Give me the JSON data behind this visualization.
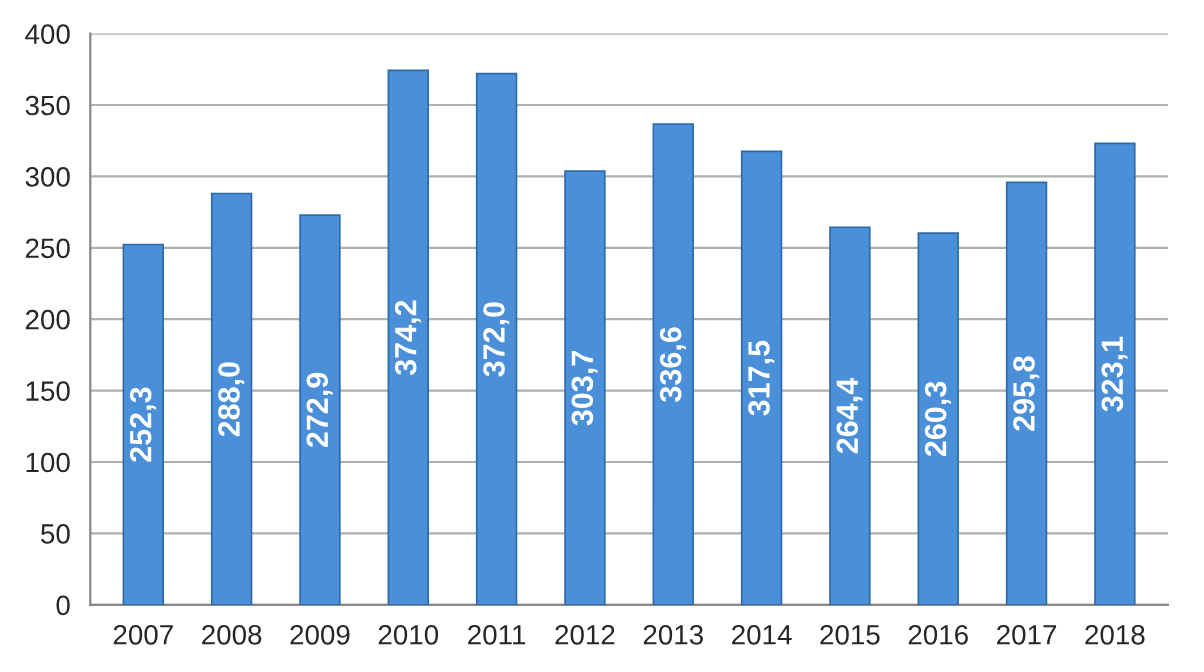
{
  "chart_data": {
    "type": "bar",
    "categories": [
      "2007",
      "2008",
      "2009",
      "2010",
      "2011",
      "2012",
      "2013",
      "2014",
      "2015",
      "2016",
      "2017",
      "2018"
    ],
    "values": [
      252.3,
      288.0,
      272.9,
      374.2,
      372.0,
      303.7,
      336.6,
      317.5,
      264.4,
      260.3,
      295.8,
      323.1
    ],
    "value_labels": [
      "252,3",
      "288,0",
      "272,9",
      "374,2",
      "372,0",
      "303,7",
      "336,6",
      "317,5",
      "264,4",
      "260,3",
      "295,8",
      "323,1"
    ],
    "color": "#4a8fd8",
    "ylim": [
      0,
      400
    ],
    "yticks": [
      0,
      50,
      100,
      150,
      200,
      250,
      300,
      350,
      400
    ],
    "grid": "y",
    "legend": false
  }
}
